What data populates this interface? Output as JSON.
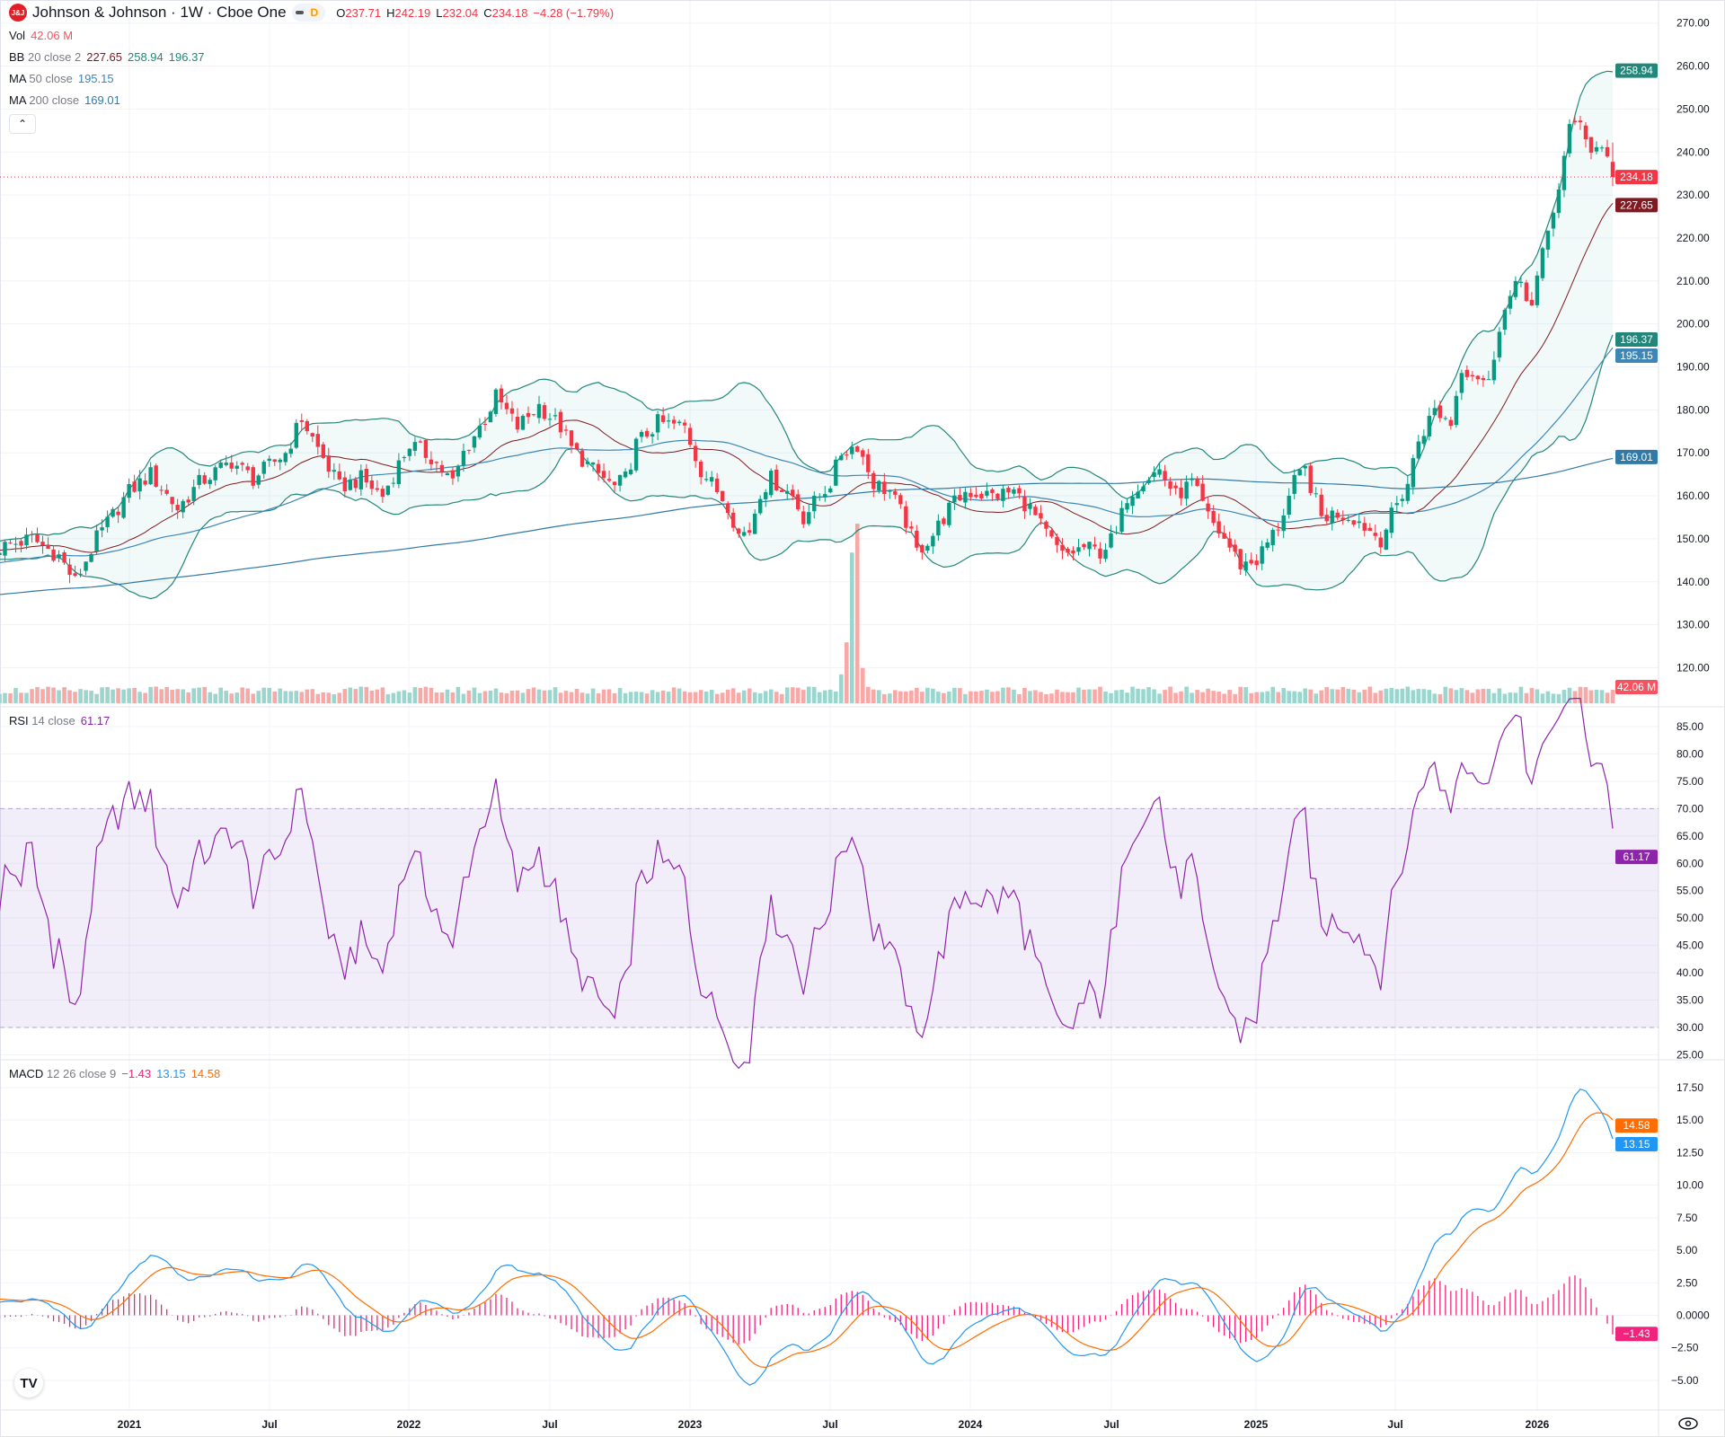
{
  "header": {
    "logo_text": "J&J",
    "title": "Johnson & Johnson · 1W · Cboe One",
    "interval_badge": "D",
    "ohlc": {
      "o_label": "O",
      "o": "237.71",
      "h_label": "H",
      "h": "242.19",
      "l_label": "L",
      "l": "232.04",
      "c_label": "C",
      "c": "234.18",
      "change": "−4.28 (−1.79%)"
    }
  },
  "legends": {
    "vol": {
      "name": "Vol",
      "value": "42.06 M"
    },
    "bb": {
      "name": "BB",
      "params": "20 close 2",
      "basis": "227.65",
      "upper": "258.94",
      "lower": "196.37"
    },
    "ma50": {
      "name": "MA",
      "params": "50 close",
      "value": "195.15"
    },
    "ma200": {
      "name": "MA",
      "params": "200 close",
      "value": "169.01"
    },
    "rsi": {
      "name": "RSI",
      "params": "14 close",
      "value": "61.17"
    },
    "macd": {
      "name": "MACD",
      "params": "12 26 close 9",
      "hist": "−1.43",
      "macd": "13.15",
      "signal": "14.58"
    }
  },
  "collapse_icon": "chevron-up-icon",
  "colors": {
    "up": "#089981",
    "down": "#f23645",
    "vol_up": "#9bd6ce",
    "vol_down": "#f7a9a7",
    "bb_band": "#22877a",
    "bb_basis": "#801922",
    "ma50": "#3d86b5",
    "ma200": "#3179a7",
    "rsi": "#8e24aa",
    "macd": "#2196f3",
    "signal": "#ff6d00",
    "hist": "#f0247c"
  },
  "chart_data": {
    "type": "candlestick",
    "interval": "1W",
    "visible_weeks": 300,
    "close_noise": 2.0,
    "close_anchors": [
      [
        -220,
        118
      ],
      [
        -170,
        132
      ],
      [
        -120,
        138
      ],
      [
        -80,
        135
      ],
      [
        -40,
        142
      ],
      [
        -10,
        147
      ],
      [
        0,
        148
      ],
      [
        6,
        150
      ],
      [
        11,
        146
      ],
      [
        14,
        140
      ],
      [
        18,
        150
      ],
      [
        24,
        161
      ],
      [
        28,
        165
      ],
      [
        33,
        157
      ],
      [
        37,
        163
      ],
      [
        43,
        168
      ],
      [
        47,
        164
      ],
      [
        53,
        170
      ],
      [
        56,
        178
      ],
      [
        59,
        171
      ],
      [
        63,
        162
      ],
      [
        67,
        164
      ],
      [
        71,
        160
      ],
      [
        73,
        165
      ],
      [
        76,
        172
      ],
      [
        80,
        169
      ],
      [
        84,
        163
      ],
      [
        86,
        170
      ],
      [
        90,
        178
      ],
      [
        92,
        183
      ],
      [
        96,
        176
      ],
      [
        100,
        181
      ],
      [
        104,
        176
      ],
      [
        106,
        171
      ],
      [
        110,
        166
      ],
      [
        114,
        162
      ],
      [
        116,
        164
      ],
      [
        118,
        172
      ],
      [
        122,
        177
      ],
      [
        127,
        176
      ],
      [
        130,
        166
      ],
      [
        135,
        158
      ],
      [
        137,
        151
      ],
      [
        139,
        152
      ],
      [
        141,
        161
      ],
      [
        143,
        164
      ],
      [
        147,
        160
      ],
      [
        149,
        155
      ],
      [
        152,
        160
      ],
      [
        154,
        163
      ],
      [
        156,
        170
      ],
      [
        159,
        172
      ],
      [
        162,
        163
      ],
      [
        165,
        161
      ],
      [
        168,
        154
      ],
      [
        170,
        147
      ],
      [
        173,
        151
      ],
      [
        176,
        157
      ],
      [
        179,
        161
      ],
      [
        184,
        160
      ],
      [
        188,
        161
      ],
      [
        191,
        157
      ],
      [
        194,
        151
      ],
      [
        197,
        146
      ],
      [
        201,
        148
      ],
      [
        204,
        147
      ],
      [
        207,
        151
      ],
      [
        209,
        160
      ],
      [
        212,
        164
      ],
      [
        215,
        166
      ],
      [
        218,
        160
      ],
      [
        221,
        163
      ],
      [
        224,
        155
      ],
      [
        227,
        150
      ],
      [
        230,
        144
      ],
      [
        233,
        145
      ],
      [
        237,
        153
      ],
      [
        240,
        163
      ],
      [
        242,
        166
      ],
      [
        245,
        155
      ],
      [
        248,
        156
      ],
      [
        251,
        155
      ],
      [
        256,
        150
      ],
      [
        259,
        158
      ],
      [
        261,
        163
      ],
      [
        263,
        173
      ],
      [
        266,
        180
      ],
      [
        269,
        177
      ],
      [
        271,
        190
      ],
      [
        274,
        188
      ],
      [
        276,
        186
      ],
      [
        278,
        200
      ],
      [
        280,
        206
      ],
      [
        282,
        210
      ],
      [
        284,
        204
      ],
      [
        286,
        216
      ],
      [
        289,
        232
      ],
      [
        291,
        245
      ],
      [
        293,
        248
      ],
      [
        295,
        240
      ],
      [
        297,
        242
      ],
      [
        299,
        234.18
      ]
    ],
    "last_candle": {
      "open": 237.71,
      "high": 242.19,
      "low": 232.04,
      "close": 234.18,
      "volume_m": 42.06
    },
    "volume_baseline_m": 40,
    "volume_spikes_m": [
      [
        156,
        90
      ],
      [
        157,
        190
      ],
      [
        158,
        470
      ],
      [
        159,
        560
      ],
      [
        160,
        110
      ]
    ],
    "price_axis": {
      "ticks": [
        "270.00",
        "260.00",
        "250.00",
        "240.00",
        "230.00",
        "220.00",
        "210.00",
        "200.00",
        "190.00",
        "180.00",
        "170.00",
        "160.00",
        "150.00",
        "140.00",
        "130.00",
        "120.00"
      ],
      "range": [
        117,
        273
      ]
    },
    "price_badges": [
      {
        "label": "258.94",
        "value": 258.94,
        "color": "#22877a"
      },
      {
        "label": "234.18",
        "value": 234.18,
        "color": "#f23645"
      },
      {
        "label": "227.65",
        "value": 227.65,
        "color": "#801922"
      },
      {
        "label": "196.37",
        "value": 196.37,
        "color": "#22877a"
      },
      {
        "label": "195.15",
        "value": 195.15,
        "color": "#3d86b5"
      },
      {
        "label": "169.01",
        "value": 169.01,
        "color": "#3179a7"
      }
    ],
    "volume_badge": {
      "label": "42.06 M",
      "color": "#f7525f"
    },
    "rsi_axis": {
      "ticks": [
        "85.00",
        "80.00",
        "75.00",
        "70.00",
        "65.00",
        "60.00",
        "55.00",
        "50.00",
        "45.00",
        "40.00",
        "35.00",
        "30.00",
        "25.00"
      ],
      "upper_band": 70,
      "lower_band": 30
    },
    "rsi_badge": {
      "label": "61.17",
      "value": 61.17,
      "color": "#8e24aa"
    },
    "macd_axis": {
      "ticks": [
        "17.50",
        "15.00",
        "12.50",
        "10.00",
        "7.50",
        "5.00",
        "2.50",
        "0.0000",
        "−2.50",
        "−5.00"
      ]
    },
    "macd_badges": [
      {
        "label": "14.58",
        "value": 14.58,
        "color": "#ff6d00"
      },
      {
        "label": "13.15",
        "value": 13.15,
        "color": "#2196f3"
      },
      {
        "label": "−1.43",
        "value": -1.43,
        "color": "#f0247c"
      }
    ],
    "time_axis": [
      "2021",
      "Jul",
      "2022",
      "Jul",
      "2023",
      "Jul",
      "2024",
      "Jul",
      "2025",
      "Jul",
      "2026"
    ]
  }
}
